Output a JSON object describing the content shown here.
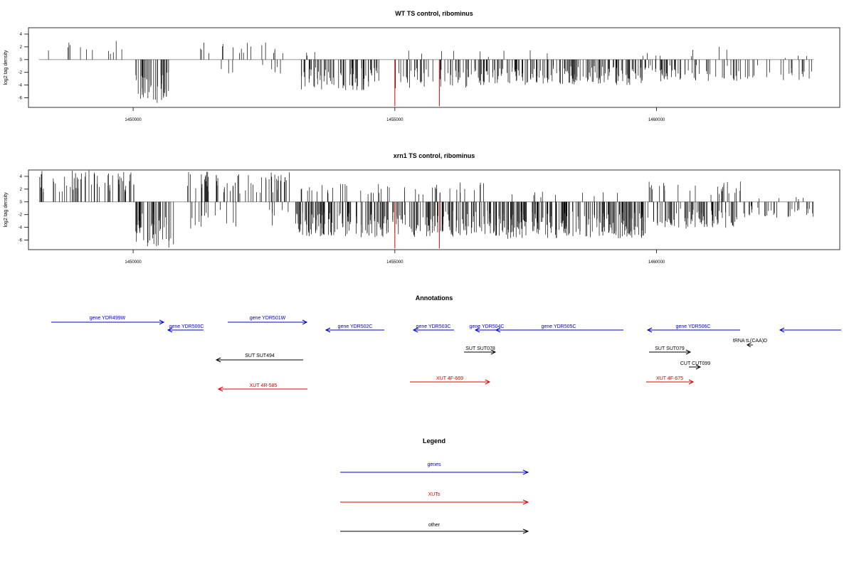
{
  "chart_data": [
    {
      "type": "bar",
      "title": "WT TS control, ribominus",
      "xlabel": "",
      "ylabel": "log2 tag density",
      "xlim": [
        1448000,
        1463500
      ],
      "ylim": [
        -7.5,
        5
      ],
      "yticks": [
        "4",
        "2",
        "0",
        "-2",
        "-4",
        "-6"
      ],
      "ytick_values": [
        4,
        2,
        0,
        -2,
        -4,
        -6
      ],
      "xticks": [
        "1450000",
        "1455000",
        "1460000"
      ],
      "xtick_values": [
        1450000,
        1455000,
        1460000
      ],
      "baseline": {
        "x0": 1448200,
        "x1": 1463000,
        "color": "#888888"
      },
      "highlights": [
        {
          "x": 1455000,
          "value": -7.3,
          "color": "#cc0000"
        },
        {
          "x": 1455850,
          "value": -7.3,
          "color": "#cc0000"
        }
      ],
      "segments": [
        {
          "x0": 1448200,
          "x1": 1449950,
          "n": 12,
          "sign": 1,
          "max": 3,
          "seed": 11
        },
        {
          "x0": 1450050,
          "x1": 1450700,
          "n": 40,
          "sign": -1,
          "max": 6.8,
          "seed": 12
        },
        {
          "x0": 1451200,
          "x1": 1452900,
          "n": 18,
          "sign": 1,
          "max": 2.8,
          "seed": 13
        },
        {
          "x0": 1451200,
          "x1": 1452900,
          "n": 8,
          "sign": -1,
          "max": 2.5,
          "seed": 14
        },
        {
          "x0": 1453200,
          "x1": 1454700,
          "n": 70,
          "sign": -1,
          "max": 4.8,
          "seed": 15
        },
        {
          "x0": 1453200,
          "x1": 1454700,
          "n": 3,
          "sign": 1,
          "max": 1.2,
          "seed": 16
        },
        {
          "x0": 1454950,
          "x1": 1456500,
          "n": 45,
          "sign": -1,
          "max": 4.5,
          "seed": 17
        },
        {
          "x0": 1454950,
          "x1": 1456500,
          "n": 4,
          "sign": 1,
          "max": 1.5,
          "seed": 18
        },
        {
          "x0": 1456500,
          "x1": 1459800,
          "n": 160,
          "sign": -1,
          "max": 4.0,
          "seed": 19
        },
        {
          "x0": 1456500,
          "x1": 1459800,
          "n": 6,
          "sign": 1,
          "max": 1.5,
          "seed": 20
        },
        {
          "x0": 1459800,
          "x1": 1461700,
          "n": 55,
          "sign": -1,
          "max": 3.4,
          "seed": 21
        },
        {
          "x0": 1459800,
          "x1": 1461700,
          "n": 7,
          "sign": 1,
          "max": 2.0,
          "seed": 22
        },
        {
          "x0": 1461700,
          "x1": 1463000,
          "n": 20,
          "sign": -1,
          "max": 3.3,
          "seed": 23
        },
        {
          "x0": 1461700,
          "x1": 1463000,
          "n": 3,
          "sign": 1,
          "max": 0.8,
          "seed": 24
        }
      ]
    },
    {
      "type": "bar",
      "title": "xrn1 TS control, ribominus",
      "xlabel": "",
      "ylabel": "log2 tag density",
      "xlim": [
        1448000,
        1463500
      ],
      "ylim": [
        -7.5,
        5
      ],
      "yticks": [
        "4",
        "2",
        "0",
        "-2",
        "-4",
        "-6"
      ],
      "ytick_values": [
        4,
        2,
        0,
        -2,
        -4,
        -6
      ],
      "xticks": [
        "1450000",
        "1455000",
        "1460000"
      ],
      "xtick_values": [
        1450000,
        1455000,
        1460000
      ],
      "baseline": {
        "x0": 1448200,
        "x1": 1463000,
        "color": "#888888"
      },
      "highlights": [
        {
          "x": 1455000,
          "value": -7.3,
          "color": "#cc0000"
        },
        {
          "x": 1455850,
          "value": -7.3,
          "color": "#cc0000"
        }
      ],
      "segments": [
        {
          "x0": 1448200,
          "x1": 1450050,
          "n": 60,
          "sign": 1,
          "max": 5.0,
          "seed": 31
        },
        {
          "x0": 1450050,
          "x1": 1450800,
          "n": 45,
          "sign": -1,
          "max": 7.2,
          "seed": 32
        },
        {
          "x0": 1451000,
          "x1": 1453000,
          "n": 60,
          "sign": 1,
          "max": 4.8,
          "seed": 33
        },
        {
          "x0": 1451000,
          "x1": 1453000,
          "n": 20,
          "sign": -1,
          "max": 4.2,
          "seed": 34
        },
        {
          "x0": 1453100,
          "x1": 1454900,
          "n": 110,
          "sign": -1,
          "max": 5.6,
          "seed": 35
        },
        {
          "x0": 1453100,
          "x1": 1454900,
          "n": 25,
          "sign": 1,
          "max": 3.0,
          "seed": 36
        },
        {
          "x0": 1454900,
          "x1": 1456800,
          "n": 90,
          "sign": -1,
          "max": 5.5,
          "seed": 37
        },
        {
          "x0": 1454900,
          "x1": 1456800,
          "n": 20,
          "sign": 1,
          "max": 3.1,
          "seed": 38
        },
        {
          "x0": 1456800,
          "x1": 1459800,
          "n": 200,
          "sign": -1,
          "max": 5.8,
          "seed": 39
        },
        {
          "x0": 1456800,
          "x1": 1459800,
          "n": 10,
          "sign": 1,
          "max": 2.0,
          "seed": 40
        },
        {
          "x0": 1459800,
          "x1": 1461700,
          "n": 80,
          "sign": -1,
          "max": 4.2,
          "seed": 41
        },
        {
          "x0": 1459800,
          "x1": 1461700,
          "n": 25,
          "sign": 1,
          "max": 3.2,
          "seed": 42
        },
        {
          "x0": 1461700,
          "x1": 1463000,
          "n": 30,
          "sign": -1,
          "max": 2.6,
          "seed": 43
        },
        {
          "x0": 1461700,
          "x1": 1463000,
          "n": 5,
          "sign": 1,
          "max": 0.8,
          "seed": 44
        }
      ]
    }
  ],
  "annotations": {
    "title": "Annotations",
    "colors": {
      "gene": "#0000cc",
      "xut": "#dd0000",
      "other": "#000000"
    },
    "features": [
      {
        "label": "gene YDR499W",
        "type": "gene",
        "strand": "+"
      },
      {
        "label": "gene YDR500C",
        "type": "gene",
        "strand": "-"
      },
      {
        "label": "gene YDR501W",
        "type": "gene",
        "strand": "+"
      },
      {
        "label": "gene YDR502C",
        "type": "gene",
        "strand": "-"
      },
      {
        "label": "gene YDR503C",
        "type": "gene",
        "strand": "-"
      },
      {
        "label": "gene YDR504C",
        "type": "gene",
        "strand": "-"
      },
      {
        "label": "gene YDR505C",
        "type": "gene",
        "strand": "-"
      },
      {
        "label": "gene YDR506C",
        "type": "gene",
        "strand": "-"
      },
      {
        "label": "",
        "type": "gene",
        "strand": "-"
      },
      {
        "label": "SUT SUT494",
        "type": "other",
        "strand": "-"
      },
      {
        "label": "SUT SUT078",
        "type": "other",
        "strand": "+"
      },
      {
        "label": "SUT SUT079",
        "type": "other",
        "strand": "+"
      },
      {
        "label": "tRNA tL(CAA)D",
        "type": "other",
        "strand": "-"
      },
      {
        "label": "CUT CUT099",
        "type": "other",
        "strand": "+"
      },
      {
        "label": "XUT 4R-585",
        "type": "xut",
        "strand": "-"
      },
      {
        "label": "XUT 4F-669",
        "type": "xut",
        "strand": "+"
      },
      {
        "label": "XUT 4F-675",
        "type": "xut",
        "strand": "+"
      }
    ]
  },
  "legend": {
    "title": "Legend",
    "items": [
      {
        "label": "genes",
        "color": "#0000cc"
      },
      {
        "label": "XUTs",
        "color": "#dd0000"
      },
      {
        "label": "other",
        "color": "#000000"
      }
    ]
  }
}
